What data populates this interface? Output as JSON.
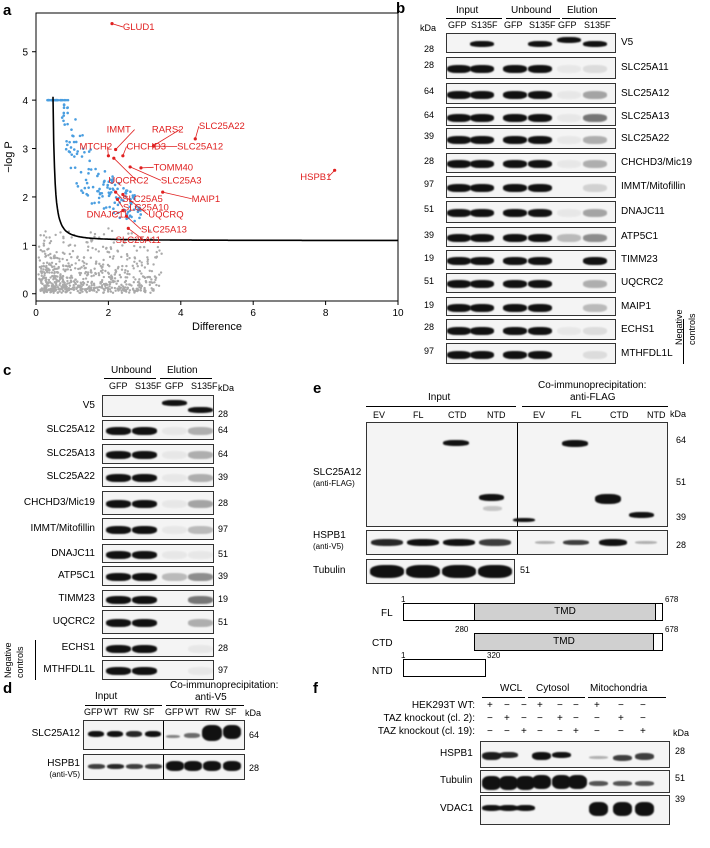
{
  "panel_labels": {
    "a": "a",
    "b": "b",
    "c": "c",
    "d": "d",
    "e": "e",
    "f": "f"
  },
  "volcano": {
    "xlabel": "Difference",
    "ylabel": "−log P",
    "xticks": [
      "0",
      "2",
      "4",
      "6",
      "8",
      "10"
    ],
    "yticks": [
      "0",
      "1",
      "2",
      "3",
      "4",
      "5"
    ],
    "labels": [
      {
        "text": "GLUD1",
        "x": 2.4,
        "y": 5.45
      },
      {
        "text": "IMMT",
        "x": 1.95,
        "y": 3.33
      },
      {
        "text": "RARS2",
        "x": 3.2,
        "y": 3.33
      },
      {
        "text": "SLC25A22",
        "x": 4.5,
        "y": 3.4
      },
      {
        "text": "MTCH2",
        "x": 1.2,
        "y": 2.98
      },
      {
        "text": "CHCHD3",
        "x": 2.5,
        "y": 2.98
      },
      {
        "text": "SLC25A12",
        "x": 3.9,
        "y": 2.98
      },
      {
        "text": "TOMM40",
        "x": 3.25,
        "y": 2.55
      },
      {
        "text": "UQCRC2",
        "x": 2.0,
        "y": 2.28
      },
      {
        "text": "SLC25A3",
        "x": 3.45,
        "y": 2.28
      },
      {
        "text": "HSPB1",
        "x": 7.3,
        "y": 2.35
      },
      {
        "text": "SLC25A5",
        "x": 2.38,
        "y": 1.9
      },
      {
        "text": "MAIP1",
        "x": 4.3,
        "y": 1.9
      },
      {
        "text": "SLC25A10",
        "x": 2.4,
        "y": 1.72
      },
      {
        "text": "UQCRQ",
        "x": 3.1,
        "y": 1.57
      },
      {
        "text": "DNAJC11",
        "x": 1.4,
        "y": 1.57
      },
      {
        "text": "SLC25A13",
        "x": 2.9,
        "y": 1.27
      },
      {
        "text": "SLC25A11",
        "x": 2.2,
        "y": 1.05
      }
    ]
  },
  "b": {
    "kda": "kDa",
    "groups": [
      "Input",
      "Unbound",
      "Elution"
    ],
    "lanes": [
      "GFP",
      "S135F",
      "GFP",
      "S135F",
      "GFP",
      "S135F"
    ],
    "rows": [
      {
        "label": "V5",
        "mw": "28"
      },
      {
        "label": "SLC25A11",
        "mw": "28"
      },
      {
        "label": "SLC25A12",
        "mw": "64"
      },
      {
        "label": "SLC25A13",
        "mw": "64"
      },
      {
        "label": "SLC25A22",
        "mw": "39"
      },
      {
        "label": "CHCHD3/Mic19",
        "mw": "28"
      },
      {
        "label": "IMMT/Mitofillin",
        "mw": "97"
      },
      {
        "label": "DNAJC11",
        "mw": "51"
      },
      {
        "label": "ATP5C1",
        "mw": "39"
      },
      {
        "label": "TIMM23",
        "mw": "19"
      },
      {
        "label": "UQCRC2",
        "mw": "51"
      },
      {
        "label": "MAIP1",
        "mw": "19"
      },
      {
        "label": "ECHS1",
        "mw": "28"
      },
      {
        "label": "MTHFDL1L",
        "mw": "97"
      }
    ],
    "neg1": "Negative",
    "neg2": "controls"
  },
  "c": {
    "kda": "kDa",
    "groups": [
      "Unbound",
      "Elution"
    ],
    "lanes": [
      "GFP",
      "S135F",
      "GFP",
      "S135F"
    ],
    "rows": [
      {
        "label": "V5",
        "mw": "28"
      },
      {
        "label": "SLC25A12",
        "mw": "64"
      },
      {
        "label": "SLC25A13",
        "mw": "64"
      },
      {
        "label": "SLC25A22",
        "mw": "39"
      },
      {
        "label": "CHCHD3/Mic19",
        "mw": "28"
      },
      {
        "label": "IMMT/Mitofillin",
        "mw": "97"
      },
      {
        "label": "DNAJC11",
        "mw": "51"
      },
      {
        "label": "ATP5C1",
        "mw": "39"
      },
      {
        "label": "TIMM23",
        "mw": "19"
      },
      {
        "label": "UQCRC2",
        "mw": "51"
      },
      {
        "label": "ECHS1",
        "mw": "28"
      },
      {
        "label": "MTHFDL1L",
        "mw": "97"
      }
    ],
    "neg1": "Negative",
    "neg2": "controls"
  },
  "d": {
    "input": "Input",
    "coip1": "Co-immunoprecipitation:",
    "coip2": "anti-V5",
    "kda": "kDa",
    "lanes": [
      "GFP",
      "WT",
      "RW",
      "SF",
      "GFP",
      "WT",
      "RW",
      "SF"
    ],
    "row1": "SLC25A12",
    "mw1": "64",
    "row2": "HSPB1",
    "row2sub": "(anti-V5)",
    "mw2": "28"
  },
  "e": {
    "input": "Input",
    "coip1": "Co-immunoprecipitation:",
    "coip2": "anti-FLAG",
    "kda": "kDa",
    "lanes": [
      "EV",
      "FL",
      "CTD",
      "NTD",
      "EV",
      "FL",
      "CTD",
      "NTD"
    ],
    "row1": "SLC25A12",
    "row1sub": "(anti-FLAG)",
    "mws1": [
      "64",
      "51",
      "39"
    ],
    "row2": "HSPB1",
    "row2sub": "(anti-V5)",
    "mw2": "28",
    "row3": "Tubulin",
    "mw3": "51",
    "fl": "FL",
    "ctd": "CTD",
    "ntd": "NTD",
    "tmd": "TMD",
    "n1": "1",
    "n678": "678",
    "n280": "280",
    "n678b": "678",
    "n1b": "1",
    "n320": "320"
  },
  "f": {
    "groups": [
      "WCL",
      "Cytosol",
      "Mitochondria"
    ],
    "conds": [
      "HEK293T WT:",
      "TAZ knockout (cl. 2):",
      "TAZ knockout (cl. 19):"
    ],
    "signs": [
      [
        "+",
        "−",
        "−",
        "+",
        "−",
        "−",
        "+",
        "−",
        "−"
      ],
      [
        "−",
        "+",
        "−",
        "−",
        "+",
        "−",
        "−",
        "+",
        "−"
      ],
      [
        "−",
        "−",
        "+",
        "−",
        "−",
        "+",
        "−",
        "−",
        "+"
      ]
    ],
    "kda": "kDa",
    "rows": [
      {
        "label": "HSPB1",
        "mw": "28"
      },
      {
        "label": "Tubulin",
        "mw": "51"
      },
      {
        "label": "VDAC1",
        "mw": "39"
      }
    ]
  }
}
